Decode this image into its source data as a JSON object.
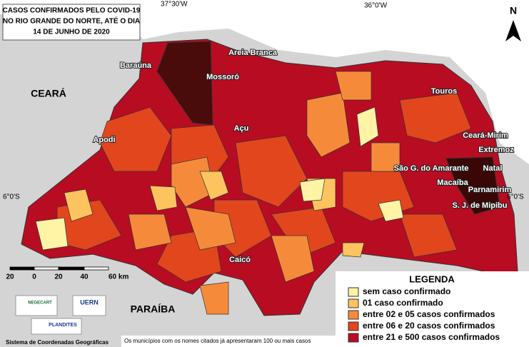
{
  "title": [
    "CASOS CONFIRMADOS PELO COVID-19",
    "NO RIO GRANDE DO NORTE, ATÉ O DIA",
    "14 DE JUNHO DE 2020"
  ],
  "coordinates": {
    "top": [
      "37°30'W",
      "36°0'W"
    ],
    "side": [
      "6°0'S",
      "6°0'S"
    ]
  },
  "north": "N",
  "cities": [
    "Baraúna",
    "Mossoró",
    "Areia Branca",
    "Touros",
    "Apodi",
    "Açu",
    "Ceará-Mirim",
    "Extremoz",
    "São G. do Amarante",
    "Natal",
    "Macaíba",
    "Parnamirim",
    "S. J. de Mipibu",
    "Caicó"
  ],
  "neighbors": [
    "CEARÁ",
    "PARAÍBA"
  ],
  "scale": [
    "20",
    "0",
    "20",
    "40",
    "60 km"
  ],
  "legend": {
    "title": "LEGENDA",
    "items": [
      {
        "label": "sem caso confirmado",
        "color": "#fff3a6"
      },
      {
        "label": "01 caso confirmado",
        "color": "#fdc35e"
      },
      {
        "label": "entre 02 e 05 casos confirmados",
        "color": "#f58b3a"
      },
      {
        "label": "entre 06 e 20 casos confirmados",
        "color": "#e2461d"
      },
      {
        "label": "entre 21 e 500 casos confirmados",
        "color": "#b80c22"
      }
    ]
  },
  "logos": [
    "NEGECART",
    "UERN",
    "PLANDITES"
  ],
  "footer": "Sistema de Coordenadas Geográficas",
  "note": "Os municípios com os nomes citados já apresentaram 100 ou mais casos"
}
